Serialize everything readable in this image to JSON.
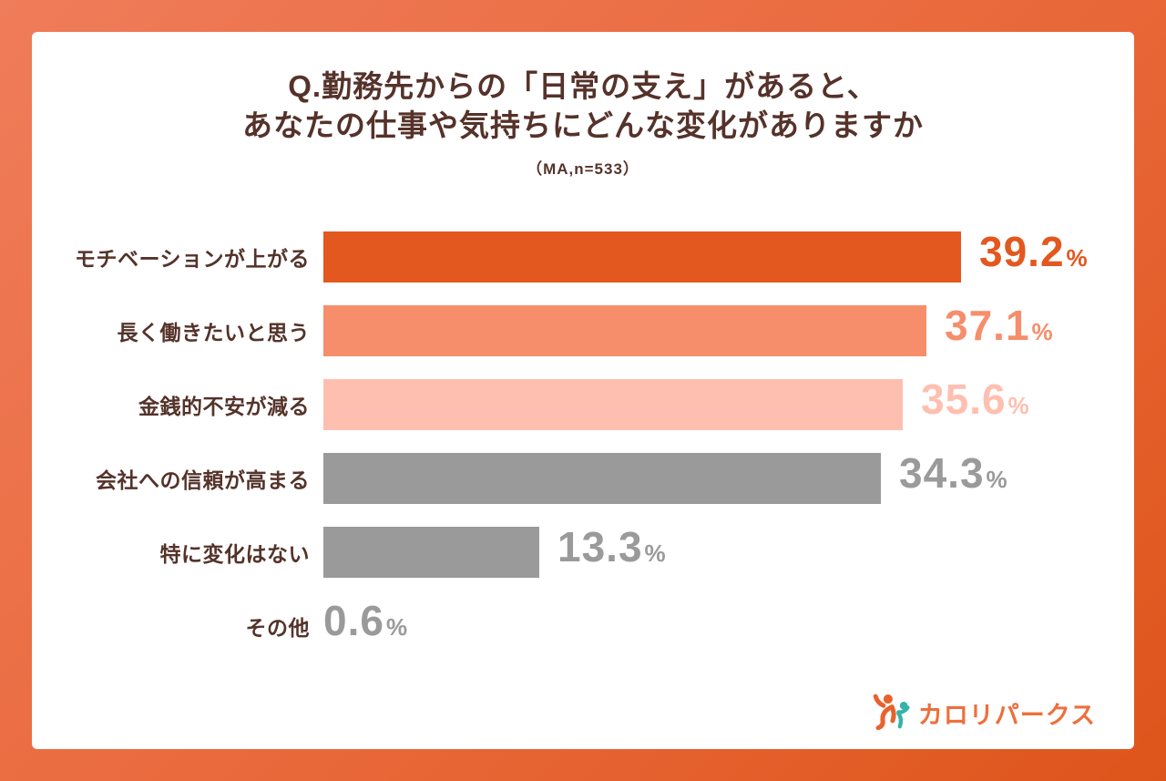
{
  "page": {
    "background_gradient": [
      "#EF7C5A",
      "#DE551B"
    ],
    "card_color": "#FFFFFF"
  },
  "title": {
    "line1": "Q.勤務先からの「日常の支え」があると、",
    "line2": "あなたの仕事や気持ちにどんな変化がありますか",
    "subtitle": "（MA,n=533）",
    "text_color": "#55322A"
  },
  "chart_data": {
    "type": "bar",
    "orientation": "horizontal",
    "title": "Q.勤務先からの「日常の支え」があると、あなたの仕事や気持ちにどんな変化がありますか",
    "survey_note": "（MA,n=533）",
    "categories": [
      "モチベーションが上がる",
      "長く働きたいと思う",
      "金銭的不安が減る",
      "会社への信頼が高まる",
      "特に変化はない",
      "その他"
    ],
    "values": [
      39.2,
      37.1,
      35.6,
      34.3,
      13.3,
      0.6
    ],
    "unit": "%",
    "xlim": [
      0,
      40
    ],
    "grid": false,
    "legend": false,
    "bar_colors": [
      "#E2581E",
      "#F68E6B",
      "#FFBFB0",
      "#9A9A9A",
      "#9A9A9A",
      "#9A9A9A"
    ],
    "value_label_colors": [
      "#E2581E",
      "#F68E6B",
      "#FFBFB0",
      "#9A9A9A",
      "#9A9A9A",
      "#9A9A9A"
    ],
    "label_color": "#54332A"
  },
  "logo": {
    "text": "カロリパークス",
    "text_color": "#EE6F3D",
    "icon_colors": [
      "#E8622C",
      "#35B3AA"
    ]
  }
}
